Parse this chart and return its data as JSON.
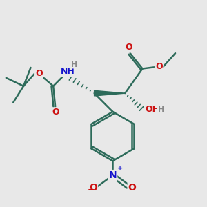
{
  "background_color": "#e8e8e8",
  "bond_color": "#2d6b5a",
  "bond_width": 1.8,
  "atom_colors": {
    "O": "#cc1111",
    "N": "#1111cc",
    "H": "#888888",
    "C": "#2d6b5a"
  },
  "font_size": 9,
  "figsize": [
    3.0,
    3.0
  ],
  "dpi": 100,
  "xlim": [
    0,
    10
  ],
  "ylim": [
    0,
    10
  ]
}
